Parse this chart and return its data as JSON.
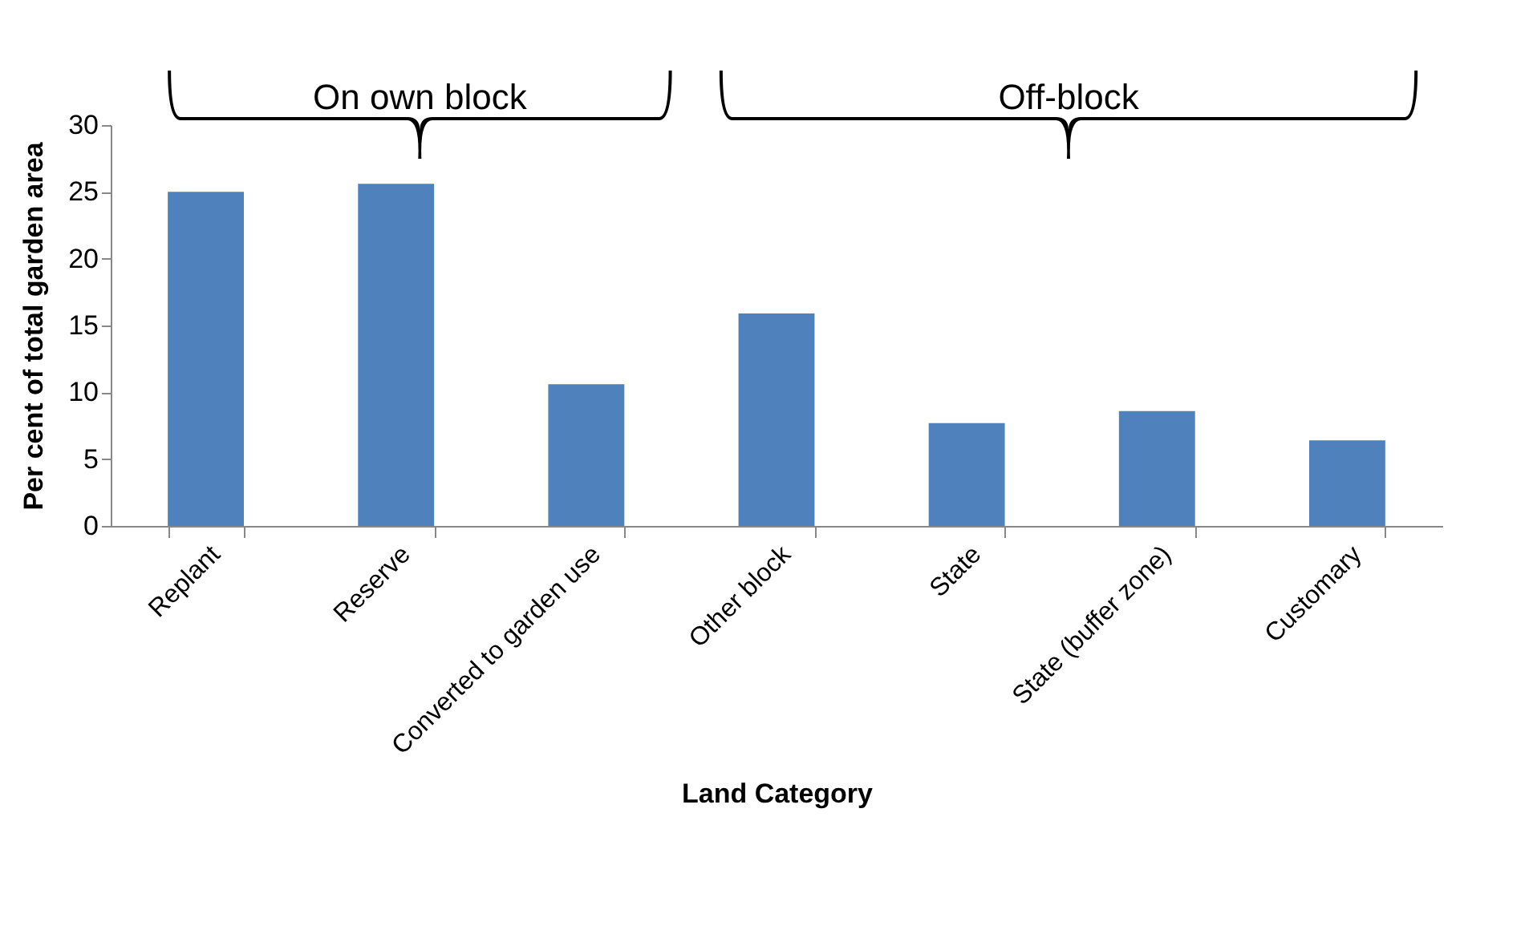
{
  "chart_data": {
    "type": "bar",
    "xlabel": "Land Category",
    "ylabel": "Per cent of total garden area",
    "categories": [
      "Replant",
      "Reserve",
      "Converted to garden use",
      "Other block",
      "State",
      "State (buffer zone)",
      "Customary"
    ],
    "values": [
      25.0,
      25.6,
      10.6,
      15.9,
      7.7,
      8.6,
      6.4
    ],
    "color": "#4f81bd",
    "ylim": [
      0,
      30
    ],
    "yticks": [
      0,
      5,
      10,
      15,
      20,
      25,
      30
    ],
    "grid": false,
    "annotations": [
      "On own block",
      "Off-block"
    ]
  }
}
